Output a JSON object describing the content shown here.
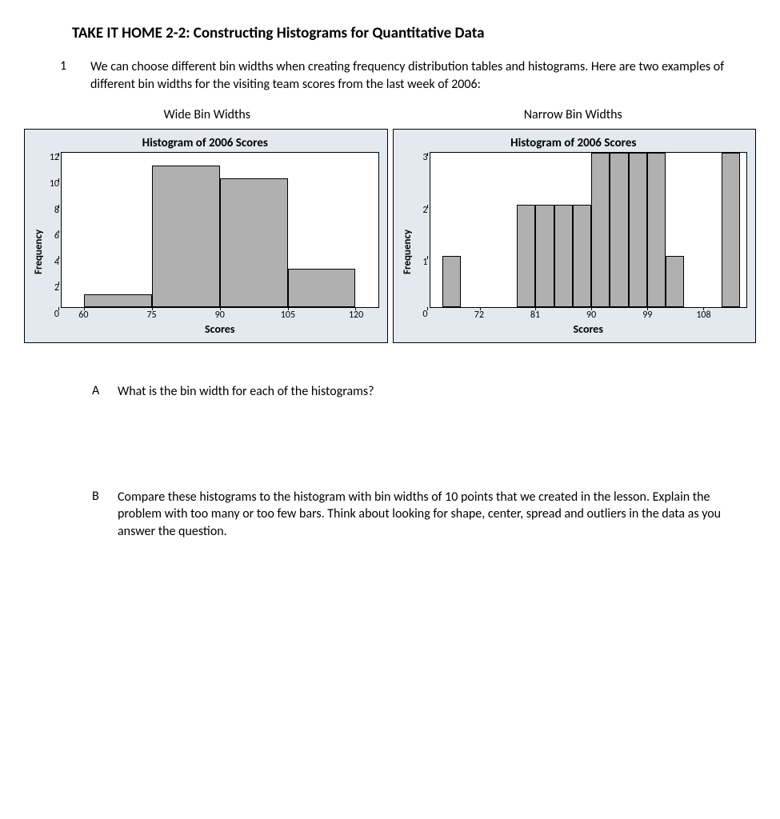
{
  "title": "TAKE IT HOME 2-2: Constructing Histograms for Quantitative Data",
  "question1": {
    "num": "1",
    "text": "We can choose different bin widths when creating frequency distribution tables and histograms. Here are two examples of different bin widths for the visiting team scores from the last week of 2006:"
  },
  "subtitle_left": "Wide Bin Widths",
  "subtitle_right": "Narrow Bin Widths",
  "chart_left": {
    "title": "Histogram of 2006 Scores",
    "ylabel": "Frequency",
    "xlabel": "Scores",
    "yticks": [
      "12",
      "10",
      "8",
      "6",
      "4",
      "2",
      "0"
    ],
    "ymax": 12,
    "xmin": 55,
    "xmax": 125,
    "xticks": [
      60,
      75,
      90,
      105,
      120
    ],
    "bars": [
      {
        "x0": 60,
        "x1": 75,
        "y": 1
      },
      {
        "x0": 75,
        "x1": 90,
        "y": 11
      },
      {
        "x0": 90,
        "x1": 105,
        "y": 10
      },
      {
        "x0": 105,
        "x1": 120,
        "y": 3
      }
    ],
    "bar_color": "#b0b0b0",
    "panel_bg": "#e3e9ef",
    "plot_bg": "#ffffff",
    "border_color": "#000000"
  },
  "chart_right": {
    "title": "Histogram of 2006 Scores",
    "ylabel": "Frequency",
    "xlabel": "Scores",
    "yticks": [
      "3",
      "2",
      "1",
      "0"
    ],
    "ymax": 3,
    "xmin": 64,
    "xmax": 115,
    "xticks": [
      72,
      81,
      90,
      99,
      108
    ],
    "bars": [
      {
        "x0": 66,
        "x1": 69,
        "y": 1
      },
      {
        "x0": 78,
        "x1": 81,
        "y": 2
      },
      {
        "x0": 81,
        "x1": 84,
        "y": 2
      },
      {
        "x0": 84,
        "x1": 87,
        "y": 2
      },
      {
        "x0": 87,
        "x1": 90,
        "y": 2
      },
      {
        "x0": 90,
        "x1": 93,
        "y": 3
      },
      {
        "x0": 93,
        "x1": 96,
        "y": 3
      },
      {
        "x0": 96,
        "x1": 99,
        "y": 3
      },
      {
        "x0": 99,
        "x1": 102,
        "y": 3
      },
      {
        "x0": 102,
        "x1": 105,
        "y": 1
      },
      {
        "x0": 111,
        "x1": 114,
        "y": 3
      }
    ],
    "bar_color": "#b0b0b0",
    "panel_bg": "#e3e9ef",
    "plot_bg": "#ffffff",
    "border_color": "#000000"
  },
  "subA": {
    "num": "A",
    "text": "What is the bin width for each of the histograms?"
  },
  "subB": {
    "num": "B",
    "text": "Compare these histograms to the histogram with bin widths of 10 points that we created in the lesson. Explain the problem with too many or too few bars. Think about looking for shape, center, spread and outliers in the data as you answer the question."
  }
}
